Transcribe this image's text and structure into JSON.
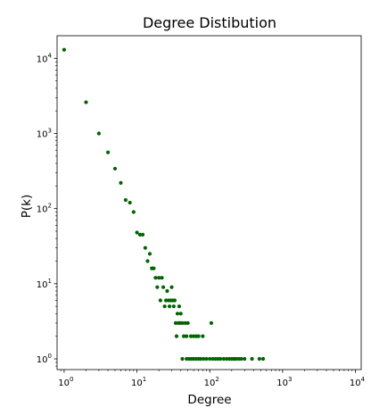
{
  "chart_data": {
    "type": "scatter",
    "title": "Degree Distibution",
    "xlabel": "Degree",
    "ylabel": "P(k)",
    "xscale": "log",
    "yscale": "log",
    "xlim": [
      0.8,
      12000
    ],
    "ylim": [
      0.72,
      20000
    ],
    "xticks": [
      1,
      10,
      100,
      1000,
      10000
    ],
    "xtick_labels": [
      {
        "base": "10",
        "exp": "0"
      },
      {
        "base": "10",
        "exp": "1"
      },
      {
        "base": "10",
        "exp": "2"
      },
      {
        "base": "10",
        "exp": "3"
      },
      {
        "base": "10",
        "exp": "4"
      }
    ],
    "yticks": [
      1,
      10,
      100,
      1000,
      10000
    ],
    "ytick_labels": [
      {
        "base": "10",
        "exp": "0"
      },
      {
        "base": "10",
        "exp": "1"
      },
      {
        "base": "10",
        "exp": "2"
      },
      {
        "base": "10",
        "exp": "3"
      },
      {
        "base": "10",
        "exp": "4"
      }
    ],
    "grid": false,
    "marker_color": "#006400",
    "points": [
      [
        1,
        13000
      ],
      [
        2,
        2600
      ],
      [
        3,
        1000
      ],
      [
        4,
        560
      ],
      [
        5,
        340
      ],
      [
        6,
        220
      ],
      [
        7,
        130
      ],
      [
        8,
        120
      ],
      [
        9,
        90
      ],
      [
        10,
        48
      ],
      [
        11,
        45
      ],
      [
        12,
        45
      ],
      [
        13,
        30
      ],
      [
        14,
        20
      ],
      [
        15,
        25
      ],
      [
        16,
        16
      ],
      [
        17,
        16
      ],
      [
        18,
        12
      ],
      [
        19,
        9
      ],
      [
        20,
        12
      ],
      [
        21,
        6
      ],
      [
        22,
        12
      ],
      [
        23,
        9
      ],
      [
        24,
        5
      ],
      [
        25,
        6
      ],
      [
        26,
        8
      ],
      [
        27,
        6
      ],
      [
        28,
        5
      ],
      [
        29,
        6
      ],
      [
        30,
        9
      ],
      [
        31,
        6
      ],
      [
        32,
        5
      ],
      [
        33,
        6
      ],
      [
        34,
        3
      ],
      [
        35,
        2
      ],
      [
        36,
        4
      ],
      [
        37,
        3
      ],
      [
        38,
        5
      ],
      [
        39,
        3
      ],
      [
        40,
        4
      ],
      [
        42,
        3
      ],
      [
        44,
        2
      ],
      [
        46,
        3
      ],
      [
        48,
        2
      ],
      [
        50,
        3
      ],
      [
        55,
        2
      ],
      [
        60,
        2
      ],
      [
        65,
        2
      ],
      [
        70,
        2
      ],
      [
        80,
        2
      ],
      [
        105,
        3
      ],
      [
        42,
        1
      ],
      [
        48,
        1
      ],
      [
        52,
        1
      ],
      [
        56,
        1
      ],
      [
        60,
        1
      ],
      [
        65,
        1
      ],
      [
        70,
        1
      ],
      [
        75,
        1
      ],
      [
        82,
        1
      ],
      [
        90,
        1
      ],
      [
        100,
        1
      ],
      [
        110,
        1
      ],
      [
        120,
        1
      ],
      [
        130,
        1
      ],
      [
        140,
        1
      ],
      [
        155,
        1
      ],
      [
        170,
        1
      ],
      [
        185,
        1
      ],
      [
        200,
        1
      ],
      [
        215,
        1
      ],
      [
        230,
        1
      ],
      [
        250,
        1
      ],
      [
        270,
        1
      ],
      [
        300,
        1
      ],
      [
        380,
        1
      ],
      [
        480,
        1
      ],
      [
        540,
        1
      ]
    ]
  }
}
